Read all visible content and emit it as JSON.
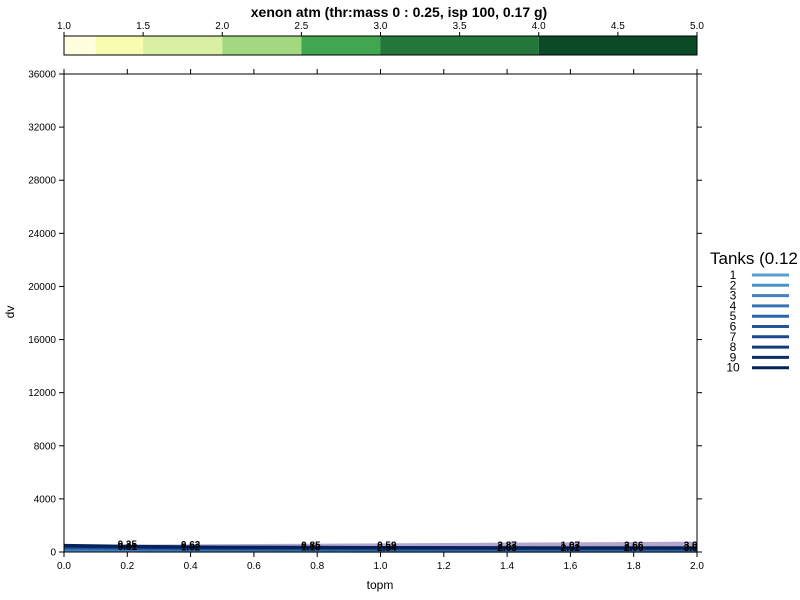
{
  "chart_data": {
    "type": "line",
    "title": "xenon atm (thr:mass 0 : 0.25, isp 100, 0.17 g)",
    "xlabel": "topm",
    "ylabel": "dv",
    "xlim": [
      0,
      2
    ],
    "ylim": [
      0,
      36000
    ],
    "x_ticks": [
      "0.0",
      "0.2",
      "0.4",
      "0.6",
      "0.8",
      "1.0",
      "1.2",
      "1.4",
      "1.6",
      "1.8",
      "2.0"
    ],
    "y_ticks": [
      "0",
      "4000",
      "8000",
      "12000",
      "16000",
      "20000",
      "24000",
      "28000",
      "32000",
      "36000"
    ],
    "colorkey": {
      "ticks": [
        "1.0",
        "1.5",
        "2.0",
        "2.5",
        "3.0",
        "3.5",
        "4.0",
        "4.5",
        "5.0"
      ],
      "bands": [
        {
          "from": 1.0,
          "to": 1.2,
          "color": "#ffffe0"
        },
        {
          "from": 1.2,
          "to": 1.5,
          "color": "#f7fcb0"
        },
        {
          "from": 1.5,
          "to": 2.0,
          "color": "#d9f0a3"
        },
        {
          "from": 2.0,
          "to": 2.5,
          "color": "#a1d880"
        },
        {
          "from": 2.5,
          "to": 3.0,
          "color": "#41a650"
        },
        {
          "from": 3.0,
          "to": 4.0,
          "color": "#23773a"
        },
        {
          "from": 4.0,
          "to": 5.0,
          "color": "#0b4a26"
        }
      ]
    },
    "legend": {
      "title": "Tanks (0.12",
      "placement": "right",
      "items": [
        {
          "label": "1",
          "color": "#5a9fd0"
        },
        {
          "label": "2",
          "color": "#4d90c8"
        },
        {
          "label": "3",
          "color": "#4281be"
        },
        {
          "label": "4",
          "color": "#3773b4"
        },
        {
          "label": "5",
          "color": "#2c65a8"
        },
        {
          "label": "6",
          "color": "#22579b"
        },
        {
          "label": "7",
          "color": "#1a498d"
        },
        {
          "label": "8",
          "color": "#123b7c"
        },
        {
          "label": "9",
          "color": "#0b2e6b"
        },
        {
          "label": "10",
          "color": "#06225b"
        }
      ]
    },
    "purple_band": {
      "color": "#a897c6",
      "x": [
        0,
        2
      ],
      "y_low": [
        200,
        260
      ],
      "y_high": [
        520,
        780
      ]
    },
    "series": [
      {
        "label": "1",
        "x": [
          0,
          0.25,
          0.5,
          1.0,
          1.5,
          2.0
        ],
        "y": [
          80,
          70,
          65,
          60,
          58,
          55
        ]
      },
      {
        "label": "2",
        "x": [
          0,
          0.25,
          0.5,
          1.0,
          1.5,
          2.0
        ],
        "y": [
          150,
          130,
          120,
          110,
          105,
          100
        ]
      },
      {
        "label": "3",
        "x": [
          0,
          0.25,
          0.5,
          1.0,
          1.5,
          2.0
        ],
        "y": [
          210,
          180,
          165,
          150,
          145,
          140
        ]
      },
      {
        "label": "4",
        "x": [
          0,
          0.25,
          0.5,
          1.0,
          1.5,
          2.0
        ],
        "y": [
          260,
          225,
          205,
          190,
          180,
          175
        ]
      },
      {
        "label": "5",
        "x": [
          0,
          0.25,
          0.5,
          1.0,
          1.5,
          2.0
        ],
        "y": [
          310,
          265,
          240,
          220,
          210,
          205
        ]
      },
      {
        "label": "6",
        "x": [
          0,
          0.25,
          0.5,
          1.0,
          1.5,
          2.0
        ],
        "y": [
          355,
          300,
          270,
          250,
          240,
          232
        ]
      },
      {
        "label": "7",
        "x": [
          0,
          0.25,
          0.5,
          1.0,
          1.5,
          2.0
        ],
        "y": [
          395,
          335,
          300,
          275,
          262,
          255
        ]
      },
      {
        "label": "8",
        "x": [
          0,
          0.25,
          0.5,
          1.0,
          1.5,
          2.0
        ],
        "y": [
          430,
          365,
          325,
          298,
          285,
          276
        ]
      },
      {
        "label": "9",
        "x": [
          0,
          0.25,
          0.5,
          1.0,
          1.5,
          2.0
        ],
        "y": [
          465,
          392,
          350,
          320,
          305,
          296
        ]
      },
      {
        "label": "10",
        "x": [
          0,
          0.25,
          0.5,
          1.0,
          1.5,
          2.0
        ],
        "y": [
          495,
          418,
          372,
          340,
          322,
          313
        ]
      }
    ],
    "contour_labels": [
      {
        "text": "0.25",
        "x": 0.2,
        "y": 640
      },
      {
        "text": "0.31",
        "x": 0.2,
        "y": 470
      },
      {
        "text": "0.63",
        "x": 0.4,
        "y": 610
      },
      {
        "text": "1.02",
        "x": 0.4,
        "y": 420
      },
      {
        "text": "0.85",
        "x": 0.78,
        "y": 560
      },
      {
        "text": "1.10",
        "x": 0.78,
        "y": 400
      },
      {
        "text": "0.59",
        "x": 1.02,
        "y": 570
      },
      {
        "text": "2.54",
        "x": 1.02,
        "y": 370
      },
      {
        "text": "2.87",
        "x": 1.4,
        "y": 560
      },
      {
        "text": "2.03",
        "x": 1.4,
        "y": 380
      },
      {
        "text": "1.07",
        "x": 1.6,
        "y": 570
      },
      {
        "text": "2.52",
        "x": 1.6,
        "y": 370
      },
      {
        "text": "2.66",
        "x": 1.8,
        "y": 550
      },
      {
        "text": "2.06",
        "x": 1.8,
        "y": 380
      },
      {
        "text": "3.0",
        "x": 1.98,
        "y": 560
      },
      {
        "text": "3.6",
        "x": 1.98,
        "y": 380
      }
    ]
  }
}
